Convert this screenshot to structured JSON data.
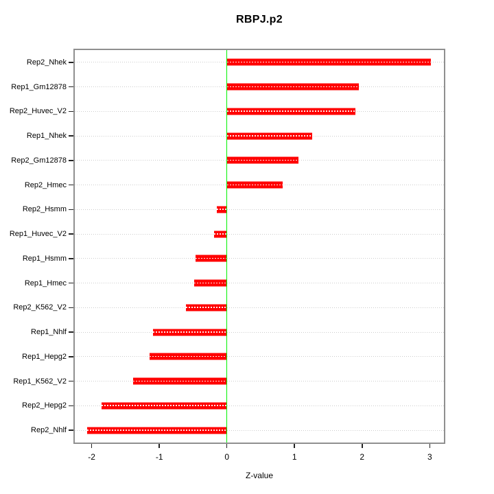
{
  "chart_data": {
    "type": "bar",
    "orientation": "horizontal",
    "title": "RBPJ.p2",
    "xlabel": "Z-value",
    "categories": [
      "Rep2_Nhek",
      "Rep1_Gm12878",
      "Rep2_Huvec_V2",
      "Rep1_Nhek",
      "Rep2_Gm12878",
      "Rep2_Hmec",
      "Rep2_Hsmm",
      "Rep1_Huvec_V2",
      "Rep1_Hsmm",
      "Rep1_Hmec",
      "Rep2_K562_V2",
      "Rep1_Nhlf",
      "Rep1_Hepg2",
      "Rep1_K562_V2",
      "Rep2_Hepg2",
      "Rep2_Nhlf"
    ],
    "values": [
      3.02,
      1.95,
      1.9,
      1.26,
      1.06,
      0.83,
      -0.15,
      -0.19,
      -0.46,
      -0.48,
      -0.61,
      -1.09,
      -1.14,
      -1.39,
      -1.85,
      -2.07
    ],
    "xticks": [
      -2,
      -1,
      0,
      1,
      2,
      3
    ],
    "xlim": [
      -2.25,
      3.21
    ],
    "zero_line": 0,
    "grid": "dotted-horizontal",
    "legend": "none",
    "colors": {
      "bar": "#ff0000",
      "zero_line": "#00f400",
      "grid_dots": "#cbcbcb",
      "box_border": "#8f8f8f",
      "tick": "#222222",
      "text": "#000000",
      "background": "#ffffff"
    }
  }
}
